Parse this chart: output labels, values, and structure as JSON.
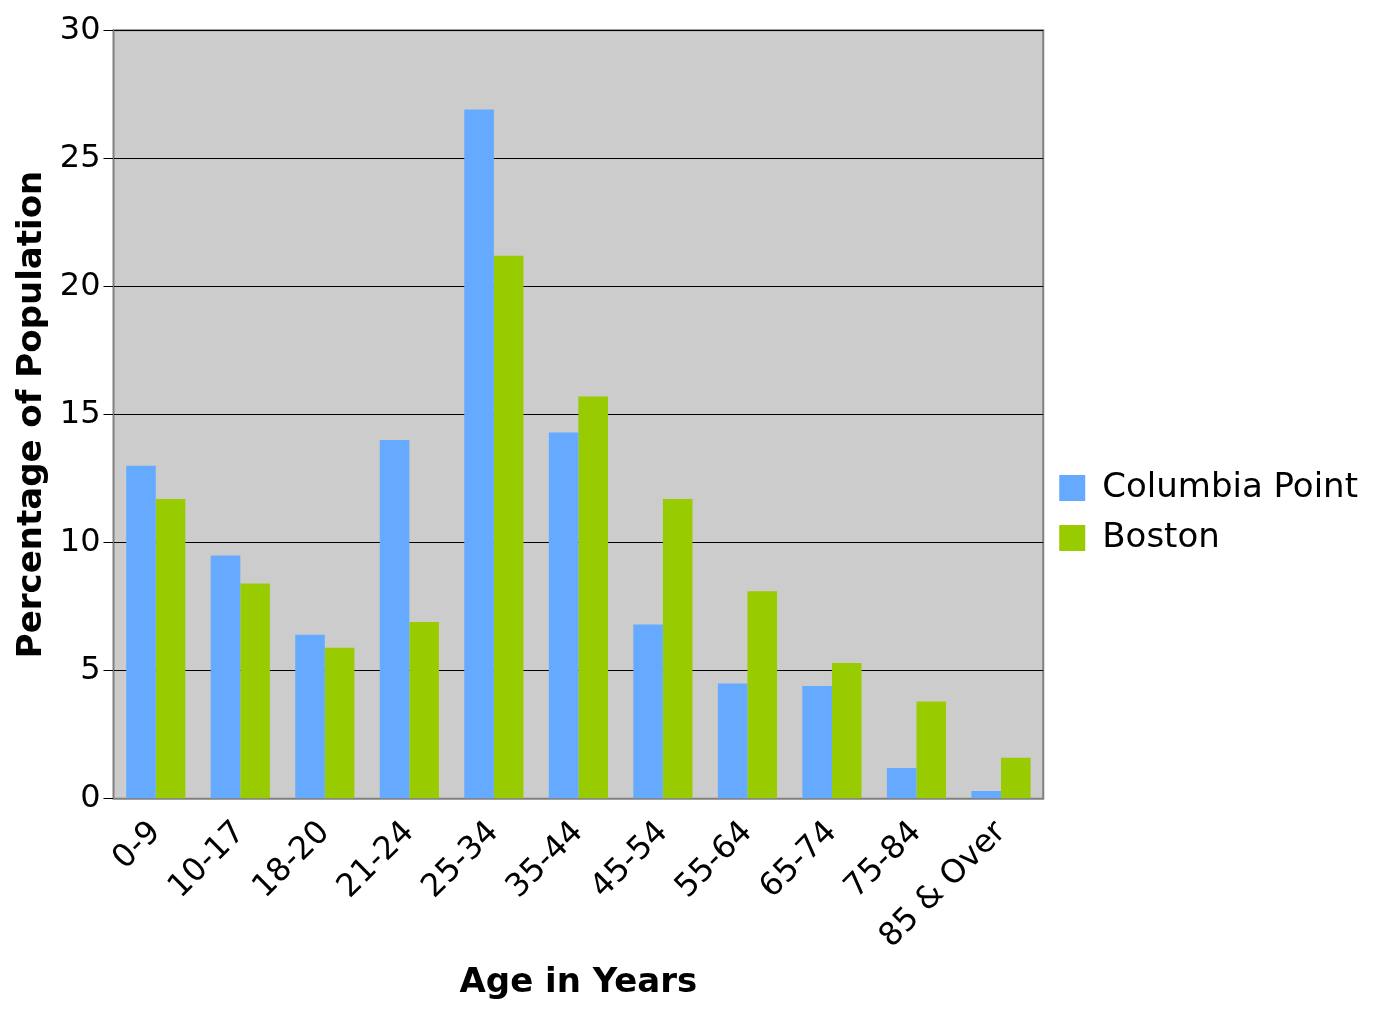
{
  "chart_data": {
    "type": "bar",
    "xlabel": "Age in Years",
    "ylabel": "Percentage of Population",
    "categories": [
      "0-9",
      "10-17",
      "18-20",
      "21-24",
      "25-34",
      "35-44",
      "45-54",
      "55-64",
      "65-74",
      "75-84",
      "85 & Over"
    ],
    "series": [
      {
        "name": "Columbia Point",
        "color": "#66aaff",
        "values": [
          13.0,
          9.5,
          6.4,
          14.0,
          26.9,
          14.3,
          6.8,
          4.5,
          4.4,
          1.2,
          0.3
        ]
      },
      {
        "name": "Boston",
        "color": "#99cc00",
        "values": [
          11.7,
          8.4,
          5.9,
          6.9,
          21.2,
          15.7,
          11.7,
          8.1,
          5.3,
          3.8,
          1.6
        ]
      }
    ],
    "ylim": [
      0,
      30
    ],
    "yticks": [
      0,
      5,
      10,
      15,
      20,
      25,
      30
    ],
    "grid": "y",
    "legend": "right"
  }
}
